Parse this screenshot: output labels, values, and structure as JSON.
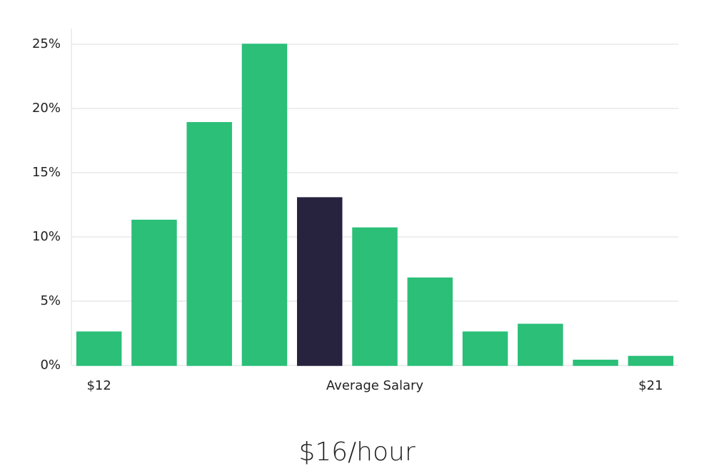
{
  "chart_data": {
    "type": "bar",
    "categories": [
      "$12",
      null,
      null,
      null,
      null,
      null,
      null,
      null,
      null,
      null,
      "$21"
    ],
    "values": [
      2.6,
      11.3,
      18.9,
      25,
      13.05,
      10.7,
      6.8,
      2.6,
      3.2,
      0.4,
      0.7
    ],
    "colors": [
      "#2bbf78",
      "#2bbf78",
      "#2bbf78",
      "#2bbf78",
      "#27233f",
      "#2bbf78",
      "#2bbf78",
      "#2bbf78",
      "#2bbf78",
      "#2bbf78",
      "#2bbf78"
    ],
    "x_label": "Average Salary",
    "annotation": "$16/hour",
    "ylim": [
      0,
      26.2
    ],
    "yticks": [
      {
        "value": 0,
        "label": "0%"
      },
      {
        "value": 5,
        "label": "5%"
      },
      {
        "value": 10,
        "label": "10%"
      },
      {
        "value": 15,
        "label": "15%"
      },
      {
        "value": 20,
        "label": "20%"
      },
      {
        "value": 25,
        "label": "25%"
      }
    ],
    "grid": true
  }
}
